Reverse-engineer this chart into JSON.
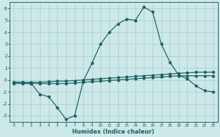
{
  "xlabel": "Humidex (Indice chaleur)",
  "bg_color": "#cde8e8",
  "grid_color": "#aad0d0",
  "line_color": "#1a5f5f",
  "xlim": [
    -0.5,
    23.5
  ],
  "ylim": [
    -3.5,
    6.5
  ],
  "xticks": [
    0,
    1,
    2,
    3,
    4,
    5,
    6,
    7,
    8,
    9,
    10,
    11,
    12,
    13,
    14,
    15,
    16,
    17,
    18,
    19,
    20,
    21,
    22,
    23
  ],
  "yticks": [
    -3,
    -2,
    -1,
    0,
    1,
    2,
    3,
    4,
    5,
    6
  ],
  "line1_x": [
    0,
    1,
    2,
    3,
    4,
    5,
    6,
    7,
    8,
    9,
    10,
    11,
    12,
    13,
    14,
    15,
    16,
    17,
    18,
    19,
    20,
    21,
    22,
    23
  ],
  "line1_y": [
    -0.2,
    -0.2,
    -0.2,
    -0.2,
    -0.15,
    -0.1,
    -0.1,
    -0.05,
    0.0,
    0.05,
    0.1,
    0.15,
    0.2,
    0.25,
    0.3,
    0.35,
    0.4,
    0.45,
    0.5,
    0.55,
    0.6,
    0.65,
    0.65,
    0.65
  ],
  "line2_x": [
    0,
    1,
    2,
    3,
    4,
    5,
    6,
    7,
    8,
    9,
    10,
    11,
    12,
    13,
    14,
    15,
    16,
    17,
    18,
    19,
    20,
    21,
    22,
    23
  ],
  "line2_y": [
    -0.3,
    -0.3,
    -0.3,
    -0.3,
    -0.3,
    -0.3,
    -0.3,
    -0.25,
    -0.2,
    -0.15,
    -0.1,
    -0.05,
    0.0,
    0.05,
    0.1,
    0.15,
    0.2,
    0.25,
    0.3,
    0.35,
    0.35,
    0.35,
    0.35,
    0.35
  ],
  "line3_x": [
    0,
    1,
    2,
    3,
    4,
    5,
    6,
    7,
    8,
    9,
    10,
    11,
    12,
    13,
    14,
    15,
    16,
    17,
    18,
    19,
    20,
    21,
    22,
    23
  ],
  "line3_y": [
    -0.2,
    -0.2,
    -0.3,
    -1.2,
    -1.4,
    -2.3,
    -3.3,
    -3.0,
    -0.1,
    1.4,
    3.0,
    4.0,
    4.7,
    5.1,
    5.0,
    6.1,
    5.7,
    3.0,
    1.5,
    0.4,
    0.1,
    -0.5,
    -0.9,
    -1.0
  ]
}
